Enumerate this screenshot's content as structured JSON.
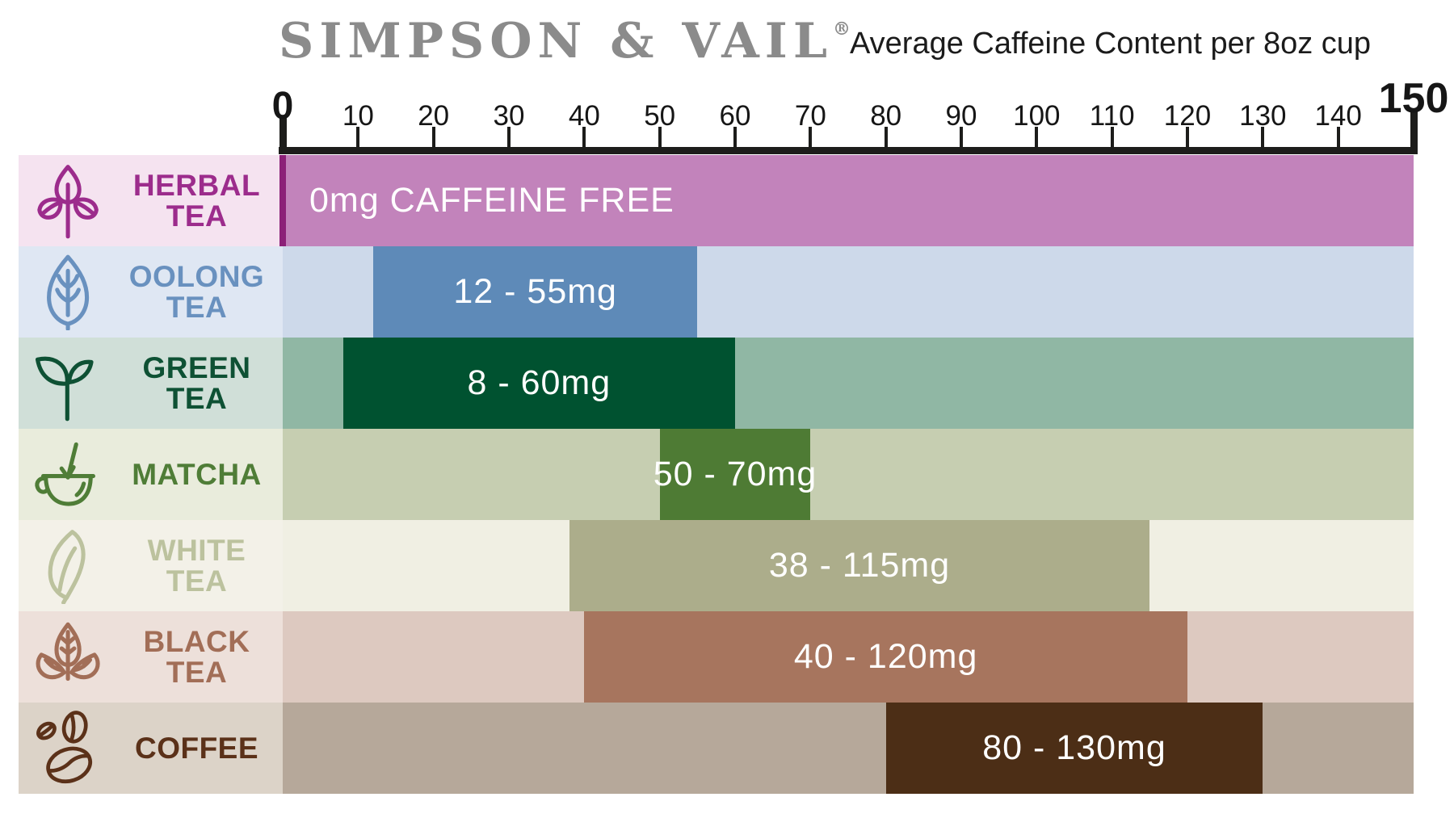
{
  "header": {
    "brand": "SIMPSON & VAIL",
    "registered_mark": "®",
    "subtitle": "Average Caffeine Content per 8oz cup"
  },
  "axis": {
    "min": 0,
    "max": 150,
    "tick_step": 10,
    "ticks": [
      0,
      10,
      20,
      30,
      40,
      50,
      60,
      70,
      80,
      90,
      100,
      110,
      120,
      130,
      140,
      150
    ]
  },
  "rows": [
    {
      "label_line1": "HERBAL",
      "label_line2": "TEA",
      "icon": "herbal-tea-icon",
      "value_label": "0mg CAFFEINE FREE",
      "range_mg": [
        0,
        0
      ],
      "bar_span": [
        0,
        150
      ],
      "align": "left",
      "colors": {
        "label_bg": "#f5e3f0",
        "label_text": "#9c2c8c",
        "track": "#c283bb",
        "bar": "#c283bb",
        "accent": "#8c2078"
      }
    },
    {
      "label_line1": "OOLONG",
      "label_line2": "TEA",
      "icon": "oolong-tea-icon",
      "value_label": "12 - 55mg",
      "range_mg": [
        12,
        55
      ],
      "bar_span": [
        12,
        55
      ],
      "align": "center",
      "colors": {
        "label_bg": "#dfe7f3",
        "label_text": "#6991bf",
        "track": "#cdd9ea",
        "bar": "#5e8ab8"
      }
    },
    {
      "label_line1": "GREEN",
      "label_line2": "TEA",
      "icon": "green-tea-icon",
      "value_label": "8 - 60mg",
      "range_mg": [
        8,
        60
      ],
      "bar_span": [
        8,
        60
      ],
      "align": "center",
      "colors": {
        "label_bg": "#d0dfd8",
        "label_text": "#0e5134",
        "track": "#90b7a4",
        "bar": "#005230"
      }
    },
    {
      "label_line1": "MATCHA",
      "label_line2": "",
      "icon": "matcha-icon",
      "value_label": "50 - 70mg",
      "range_mg": [
        50,
        70
      ],
      "bar_span": [
        50,
        70
      ],
      "align": "center",
      "colors": {
        "label_bg": "#e9ecdc",
        "label_text": "#4f7d37",
        "track": "#c6ceb1",
        "bar": "#4e7b34"
      }
    },
    {
      "label_line1": "WHITE",
      "label_line2": "TEA",
      "icon": "white-tea-icon",
      "value_label": "38 - 115mg",
      "range_mg": [
        38,
        115
      ],
      "bar_span": [
        38,
        115
      ],
      "align": "center",
      "colors": {
        "label_bg": "#f3f1e8",
        "label_text": "#bcc29e",
        "track": "#f0efe3",
        "bar": "#acad8b"
      }
    },
    {
      "label_line1": "BLACK",
      "label_line2": "TEA",
      "icon": "black-tea-icon",
      "value_label": "40 - 120mg",
      "range_mg": [
        40,
        120
      ],
      "bar_span": [
        40,
        120
      ],
      "align": "center",
      "colors": {
        "label_bg": "#ede0da",
        "label_text": "#a26e57",
        "track": "#ddc9c0",
        "bar": "#a7755e"
      }
    },
    {
      "label_line1": "COFFEE",
      "label_line2": "",
      "icon": "coffee-icon",
      "value_label": "80 - 130mg",
      "range_mg": [
        80,
        130
      ],
      "bar_span": [
        80,
        130
      ],
      "align": "center",
      "colors": {
        "label_bg": "#dcd3c8",
        "label_text": "#5b3119",
        "track": "#b6a89a",
        "bar": "#4c2e16"
      }
    }
  ],
  "chart_data": {
    "type": "bar",
    "subtype": "horizontal-range",
    "title": "SIMPSON & VAIL",
    "subtitle": "Average Caffeine Content per 8oz cup",
    "categories": [
      "HERBAL TEA",
      "OOLONG TEA",
      "GREEN TEA",
      "MATCHA",
      "WHITE TEA",
      "BLACK TEA",
      "COFFEE"
    ],
    "ranges_mg": [
      [
        0,
        0
      ],
      [
        12,
        55
      ],
      [
        8,
        60
      ],
      [
        50,
        70
      ],
      [
        38,
        115
      ],
      [
        40,
        120
      ],
      [
        80,
        130
      ]
    ],
    "data_labels": [
      "0mg CAFFEINE FREE",
      "12 - 55mg",
      "8 - 60mg",
      "50 - 70mg",
      "38 - 115mg",
      "40 - 120mg",
      "80 - 130mg"
    ],
    "xlabel": "",
    "ylabel": "",
    "xlim": [
      0,
      150
    ],
    "tick_step": 10,
    "grid": false,
    "legend": false
  }
}
